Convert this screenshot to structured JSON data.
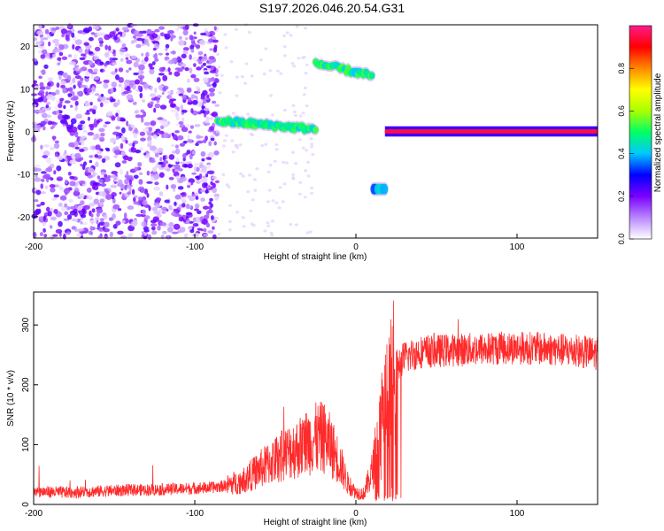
{
  "title": "S197.2026.046.20.54.G31",
  "chart_data": [
    {
      "type": "heatmap",
      "name": "spectrogram",
      "xlabel": "Height of straight line (km)",
      "ylabel": "Frequency (Hz)",
      "xlim": [
        -200,
        150
      ],
      "ylim": [
        -25,
        25
      ],
      "x_ticks": [
        -200,
        -100,
        0,
        100
      ],
      "y_ticks": [
        -20,
        -10,
        0,
        10,
        20
      ],
      "colorbar": {
        "label": "Normalized spectral amplitude",
        "range": [
          0.0,
          1.0
        ],
        "ticks": [
          0.0,
          0.2,
          0.4,
          0.6,
          0.8
        ],
        "tick_labels": [
          "0.0",
          "0.2",
          "0.4",
          "0.6",
          "0.8"
        ],
        "colors": [
          "#ffffff",
          "#b987ff",
          "#7a00ff",
          "#0000ff",
          "#00c8ff",
          "#00ff66",
          "#aaff00",
          "#ffff00",
          "#ff8800",
          "#ff0000",
          "#ff1a8c"
        ]
      },
      "features": [
        {
          "label": "noise region",
          "x_range": [
            -200,
            -86
          ],
          "freq_range": [
            -25,
            25
          ],
          "amplitude": 0.15
        },
        {
          "label": "tone band 1",
          "x_range": [
            -86,
            -25
          ],
          "freq_start": 2.5,
          "freq_end": 0.5,
          "amplitude": 0.5
        },
        {
          "label": "tone band 2",
          "x_range": [
            -25,
            10
          ],
          "freq_start": 16,
          "freq_end": 13,
          "amplitude": 0.5
        },
        {
          "label": "tone spot",
          "x_range": [
            11,
            18
          ],
          "freq_center": -13.5,
          "amplitude": 0.4
        },
        {
          "label": "carrier",
          "x_range": [
            18,
            150
          ],
          "freq_center": 0,
          "amplitude": 0.95
        }
      ]
    },
    {
      "type": "line",
      "name": "snr",
      "xlabel": "Height of straight line (km)",
      "ylabel": "SNR (10 * v/v)",
      "xlim": [
        -200,
        150
      ],
      "ylim": [
        0,
        355
      ],
      "x_ticks": [
        -200,
        -100,
        0,
        100
      ],
      "y_ticks": [
        0,
        100,
        200,
        300
      ],
      "color": "#ff2a2a",
      "points": [
        [
          -200,
          22
        ],
        [
          -180,
          20
        ],
        [
          -160,
          22
        ],
        [
          -140,
          24
        ],
        [
          -120,
          25
        ],
        [
          -100,
          27
        ],
        [
          -90,
          28
        ],
        [
          -80,
          32
        ],
        [
          -70,
          40
        ],
        [
          -60,
          58
        ],
        [
          -50,
          75
        ],
        [
          -40,
          90
        ],
        [
          -35,
          95
        ],
        [
          -30,
          105
        ],
        [
          -25,
          110
        ],
        [
          -20,
          112
        ],
        [
          -15,
          95
        ],
        [
          -10,
          70
        ],
        [
          -5,
          35
        ],
        [
          0,
          20
        ],
        [
          5,
          18
        ],
        [
          10,
          55
        ],
        [
          13,
          90
        ],
        [
          16,
          140
        ],
        [
          20,
          180
        ],
        [
          25,
          230
        ],
        [
          30,
          245
        ],
        [
          40,
          255
        ],
        [
          60,
          258
        ],
        [
          80,
          260
        ],
        [
          100,
          262
        ],
        [
          120,
          260
        ],
        [
          140,
          255
        ],
        [
          150,
          252
        ]
      ]
    }
  ]
}
